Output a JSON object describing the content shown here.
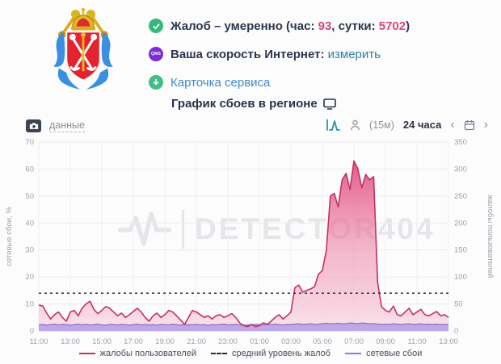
{
  "header": {
    "status_line": {
      "part1": "Жалоб – умеренно (час: ",
      "hour_count": "93",
      "part2": ", сутки: ",
      "day_count": "5702",
      "part3": ")"
    },
    "speed_line": {
      "label": "Ваша скорость Интернет: ",
      "link": "измерить"
    },
    "service_line": {
      "link": "Карточка сервиса"
    },
    "icons": {
      "status": "check-circle",
      "speed_badge": "QMS",
      "service": "down-arrow-circle"
    },
    "colors": {
      "status_icon": "#35b97c",
      "speed_icon": "#7a2dd2",
      "service_icon": "#43bd86",
      "accent_pink": "#d6487e",
      "link_teal": "#2b7f9e",
      "link_blue": "#4289c9",
      "text_dark": "#2f3550"
    }
  },
  "section": {
    "title": "График сбоев в регионе"
  },
  "toolbar": {
    "data_link": "данные",
    "interval": "(15м)",
    "range": "24 часа",
    "prev": "‹",
    "next": "›"
  },
  "watermark": "DETECTOR404",
  "chart_data": {
    "type": "area",
    "title": "График сбоев в регионе",
    "x_tick_labels": [
      "11:00",
      "13:00",
      "15:00",
      "17:00",
      "19:00",
      "21:00",
      "23:00",
      "01:00",
      "03:00",
      "05:00",
      "07:00",
      "09:00",
      "11:00",
      "13:00"
    ],
    "x_total_hours": 26,
    "step_minutes": 15,
    "grid": true,
    "legend_position": "bottom",
    "left_axis": {
      "label": "сетевые сбои, %",
      "ticks": [
        0,
        10,
        20,
        30,
        40,
        50,
        60,
        70
      ],
      "max": 70
    },
    "right_axis": {
      "label": "жалобы пользователей",
      "ticks": [
        0,
        50,
        100,
        150,
        200,
        250,
        300,
        350
      ],
      "max": 350
    },
    "series": [
      {
        "name": "жалобы пользователей",
        "axis": "right",
        "color": "#c2335c",
        "fill_top": "#e0457b",
        "fill_bottom": "#f9d9e3",
        "values": [
          48,
          46,
          33,
          22,
          30,
          35,
          25,
          18,
          35,
          38,
          28,
          42,
          50,
          55,
          40,
          32,
          38,
          45,
          42,
          35,
          28,
          33,
          25,
          30,
          36,
          42,
          35,
          25,
          18,
          28,
          33,
          25,
          30,
          38,
          35,
          28,
          20,
          12,
          25,
          38,
          35,
          30,
          25,
          28,
          22,
          28,
          30,
          25,
          28,
          32,
          25,
          15,
          10,
          8,
          12,
          8,
          10,
          15,
          12,
          18,
          25,
          30,
          22,
          28,
          35,
          80,
          85,
          72,
          75,
          78,
          82,
          105,
          112,
          150,
          250,
          255,
          230,
          280,
          292,
          262,
          315,
          300,
          265,
          290,
          280,
          286,
          90,
          45,
          38,
          35,
          46,
          30,
          28,
          35,
          42,
          30,
          35,
          40,
          30,
          28,
          32,
          36,
          28,
          30,
          25
        ]
      },
      {
        "name": "средний уровень жалоб",
        "axis": "right",
        "dash": true,
        "color": "#262b36",
        "value": 70
      },
      {
        "name": "сетевые сбои",
        "axis": "left",
        "color": "#9579d2",
        "fill": "#b9a3e6",
        "values": [
          2.2,
          2.4,
          2.1,
          2.3,
          2.5,
          2.2,
          2.4,
          2.3,
          2.1,
          2.3,
          2.5,
          2.2,
          2.4,
          2.2,
          2.3,
          2.5,
          2.2,
          2.1,
          2.4,
          2.3,
          2.2,
          2.4,
          2.3,
          2.1,
          2.3,
          2.5,
          2.2,
          2.4,
          2.2,
          2.3,
          2.1,
          2.4,
          2.3,
          2.2,
          2.5,
          2.3,
          2.1,
          2.4,
          2.2,
          2.3,
          2.4,
          2.2,
          2.3,
          2.1,
          2.3,
          2.2,
          2.4,
          2.5,
          2.2,
          2.3,
          2.4,
          2.2,
          2.1,
          2.2,
          2.3,
          2.4,
          2.3,
          2.2,
          2.4,
          2.3,
          2.5,
          2.3,
          2.2,
          2.4,
          2.3,
          2.5,
          2.6,
          2.4,
          2.5,
          2.6,
          2.4,
          2.5,
          2.7,
          2.8,
          2.6,
          2.7,
          2.8,
          2.6,
          2.7,
          2.9,
          2.8,
          2.7,
          2.9,
          2.8,
          2.6,
          2.7,
          2.5,
          2.4,
          2.5,
          2.4,
          2.6,
          2.5,
          2.4,
          2.5,
          2.6,
          2.4,
          2.5,
          2.6,
          2.4,
          2.5,
          2.4,
          2.5,
          2.3,
          2.4,
          2.4
        ]
      }
    ]
  }
}
